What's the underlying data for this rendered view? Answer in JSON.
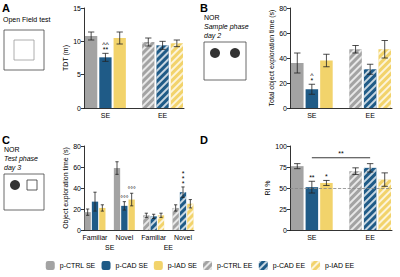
{
  "chart_data": [
    {
      "type": "bar",
      "title": "A",
      "subtitle": [
        "Open Field test"
      ],
      "ylabel": "TDT (m)",
      "categories": [
        null,
        "SE",
        null,
        null,
        null,
        "EE",
        null
      ],
      "ylim": [
        0,
        15
      ],
      "yticks": [
        0,
        5,
        10,
        15
      ],
      "grid": false,
      "legend": "bottom",
      "series": [
        {
          "name": "p-CTRL SE",
          "color": "#a3a3a3",
          "values": [
            10.8,
            null,
            null,
            null,
            null,
            null,
            null
          ],
          "errors": [
            0.6,
            null,
            null,
            null,
            null,
            null,
            null
          ]
        },
        {
          "name": "p-CAD SE",
          "color": "#1f5b87",
          "values": [
            null,
            7.6,
            null,
            null,
            null,
            null,
            null
          ],
          "errors": [
            null,
            0.6,
            null,
            null,
            null,
            null,
            null
          ]
        },
        {
          "name": "p-IAD SE",
          "color": "#f2d36b",
          "values": [
            null,
            null,
            10.5,
            null,
            null,
            null,
            null
          ],
          "errors": [
            null,
            null,
            0.9,
            null,
            null,
            null,
            null
          ]
        },
        {
          "name": "p-CTRL EE",
          "color": "#a3a3a3",
          "values": [
            null,
            null,
            null,
            null,
            9.9,
            null,
            null
          ],
          "errors": [
            null,
            null,
            null,
            null,
            0.6,
            null,
            null
          ]
        },
        {
          "name": "p-CAD EE",
          "color": "#1f5b87",
          "values": [
            null,
            null,
            null,
            null,
            null,
            9.4,
            null
          ],
          "errors": [
            null,
            null,
            null,
            null,
            null,
            0.6,
            null
          ]
        },
        {
          "name": "p-IAD EE",
          "color": "#f2d36b",
          "values": [
            null,
            null,
            null,
            null,
            null,
            null,
            9.7
          ],
          "errors": [
            null,
            null,
            null,
            null,
            null,
            null,
            0.5
          ]
        }
      ],
      "annotations": [
        {
          "series": "p-CAD SE",
          "index": 1,
          "text": "^^\n**"
        }
      ]
    },
    {
      "type": "bar",
      "title": "B",
      "subtitle": [
        "NOR",
        "Sample phase",
        "day 2"
      ],
      "ylabel": "Total object exploration time (s)",
      "categories": [
        null,
        "SE",
        null,
        null,
        null,
        "EE",
        null
      ],
      "ylim": [
        0,
        80
      ],
      "yticks": [
        0,
        20,
        40,
        60,
        80
      ],
      "grid": false,
      "legend": "bottom",
      "series": [
        {
          "name": "p-CTRL SE",
          "color": "#a3a3a3",
          "values": [
            36,
            null,
            null,
            null,
            null,
            null,
            null
          ],
          "errors": [
            8,
            null,
            null,
            null,
            null,
            null,
            null
          ]
        },
        {
          "name": "p-CAD SE",
          "color": "#1f5b87",
          "values": [
            null,
            15,
            null,
            null,
            null,
            null,
            null
          ],
          "errors": [
            null,
            4,
            null,
            null,
            null,
            null,
            null
          ]
        },
        {
          "name": "p-IAD SE",
          "color": "#f2d36b",
          "values": [
            null,
            null,
            38,
            null,
            null,
            null,
            null
          ],
          "errors": [
            null,
            null,
            5,
            null,
            null,
            null,
            null
          ]
        },
        {
          "name": "p-CTRL EE",
          "color": "#a3a3a3",
          "values": [
            null,
            null,
            null,
            null,
            47,
            null,
            null
          ],
          "errors": [
            null,
            null,
            null,
            null,
            3,
            null,
            null
          ]
        },
        {
          "name": "p-CAD EE",
          "color": "#1f5b87",
          "values": [
            null,
            null,
            null,
            null,
            null,
            31,
            null
          ],
          "errors": [
            null,
            null,
            null,
            null,
            null,
            4,
            null
          ]
        },
        {
          "name": "p-IAD EE",
          "color": "#f2d36b",
          "values": [
            null,
            null,
            null,
            null,
            null,
            null,
            47
          ],
          "errors": [
            null,
            null,
            null,
            null,
            null,
            null,
            7
          ]
        }
      ],
      "annotations": [
        {
          "series": "p-CAD SE",
          "index": 1,
          "text": "^\n*"
        }
      ]
    },
    {
      "type": "bar",
      "title": "C",
      "subtitle": [
        "NOR",
        "Test phase",
        "day 3"
      ],
      "ylabel": "Object exploration time (s)",
      "categories": [
        null,
        "Familiar",
        null,
        null,
        null,
        "Novel",
        null,
        null,
        null,
        "Familiar",
        null,
        null,
        null,
        "Novel",
        null
      ],
      "group_labels": [
        null,
        null,
        null,
        "SE",
        null,
        null,
        null,
        null,
        null,
        null,
        null,
        "EE",
        null,
        null,
        null
      ],
      "ylim": [
        0,
        80
      ],
      "yticks": [
        0,
        20,
        40,
        60,
        80
      ],
      "grid": false,
      "legend": "bottom",
      "series": [
        {
          "name": "p-CTRL SE",
          "color": "#a3a3a3",
          "values": [
            17,
            null,
            null,
            null,
            59,
            null,
            null,
            null,
            null,
            null,
            null,
            null,
            null,
            null,
            null
          ],
          "errors": [
            3,
            null,
            null,
            null,
            6,
            null,
            null,
            null,
            null,
            null,
            null,
            null,
            null,
            null,
            null
          ]
        },
        {
          "name": "p-CAD SE",
          "color": "#1f5b87",
          "values": [
            null,
            27,
            null,
            null,
            null,
            23,
            null,
            null,
            null,
            null,
            null,
            null,
            null,
            null,
            null
          ],
          "errors": [
            null,
            9,
            null,
            null,
            null,
            4,
            null,
            null,
            null,
            null,
            null,
            null,
            null,
            null,
            null
          ]
        },
        {
          "name": "p-IAD SE",
          "color": "#f2d36b",
          "values": [
            null,
            null,
            21,
            null,
            null,
            null,
            29,
            null,
            null,
            null,
            null,
            null,
            null,
            null,
            null
          ],
          "errors": [
            null,
            null,
            3,
            null,
            null,
            null,
            6,
            null,
            null,
            null,
            null,
            null,
            null,
            null,
            null
          ]
        },
        {
          "name": "p-CTRL EE",
          "color": "#a3a3a3",
          "values": [
            null,
            null,
            null,
            null,
            null,
            null,
            null,
            null,
            14,
            null,
            null,
            null,
            21,
            null,
            null
          ],
          "errors": [
            null,
            null,
            null,
            null,
            null,
            null,
            null,
            null,
            2,
            null,
            null,
            null,
            3,
            null,
            null
          ]
        },
        {
          "name": "p-CAD EE",
          "color": "#1f5b87",
          "values": [
            null,
            null,
            null,
            null,
            null,
            null,
            null,
            null,
            null,
            13,
            null,
            null,
            null,
            36,
            null
          ],
          "errors": [
            null,
            null,
            null,
            null,
            null,
            null,
            null,
            null,
            null,
            2,
            null,
            null,
            null,
            5,
            null
          ]
        },
        {
          "name": "p-IAD EE",
          "color": "#f2d36b",
          "values": [
            null,
            null,
            null,
            null,
            null,
            null,
            null,
            null,
            null,
            null,
            14,
            null,
            null,
            null,
            25
          ],
          "errors": [
            null,
            null,
            null,
            null,
            null,
            null,
            null,
            null,
            null,
            null,
            2,
            null,
            null,
            null,
            4
          ]
        }
      ],
      "annotations": [
        {
          "series": "p-CAD SE",
          "index": 5,
          "text": "°°°"
        },
        {
          "series": "p-IAD SE",
          "index": 6,
          "text": "°°°"
        },
        {
          "series": "p-CAD EE",
          "index": 13,
          "text": "*\n*\n*"
        }
      ]
    },
    {
      "type": "bar",
      "title": "D",
      "ylabel": "RI %",
      "categories": [
        null,
        "SE",
        null,
        null,
        null,
        "EE",
        null
      ],
      "ylim": [
        0,
        100
      ],
      "yticks": [
        0,
        25,
        50,
        75,
        100
      ],
      "grid": false,
      "legend": "bottom",
      "reference_lines": [
        50
      ],
      "series": [
        {
          "name": "p-CTRL SE",
          "color": "#a3a3a3",
          "values": [
            76,
            null,
            null,
            null,
            null,
            null,
            null
          ],
          "errors": [
            3,
            null,
            null,
            null,
            null,
            null,
            null
          ]
        },
        {
          "name": "p-CAD SE",
          "color": "#1f5b87",
          "values": [
            null,
            51,
            null,
            null,
            null,
            null,
            null
          ],
          "errors": [
            null,
            7,
            null,
            null,
            null,
            null,
            null
          ]
        },
        {
          "name": "p-IAD SE",
          "color": "#f2d36b",
          "values": [
            null,
            null,
            56,
            null,
            null,
            null,
            null
          ],
          "errors": [
            null,
            null,
            3,
            null,
            null,
            null,
            null
          ]
        },
        {
          "name": "p-CTRL EE",
          "color": "#a3a3a3",
          "values": [
            null,
            null,
            null,
            null,
            70,
            null,
            null
          ],
          "errors": [
            null,
            null,
            null,
            null,
            4,
            null,
            null
          ]
        },
        {
          "name": "p-CAD EE",
          "color": "#1f5b87",
          "values": [
            null,
            null,
            null,
            null,
            null,
            74,
            null
          ],
          "errors": [
            null,
            null,
            null,
            null,
            null,
            5,
            null
          ]
        },
        {
          "name": "p-IAD EE",
          "color": "#f2d36b",
          "values": [
            null,
            null,
            null,
            null,
            null,
            null,
            60
          ],
          "errors": [
            null,
            null,
            null,
            null,
            null,
            null,
            8
          ]
        }
      ],
      "annotations": [
        {
          "series": "p-CAD SE",
          "index": 1,
          "text": "**"
        },
        {
          "series": "p-IAD SE",
          "index": 2,
          "text": "*"
        }
      ],
      "bracket": {
        "text": "**",
        "from": 1,
        "to": 5,
        "y": 86
      }
    }
  ]
}
